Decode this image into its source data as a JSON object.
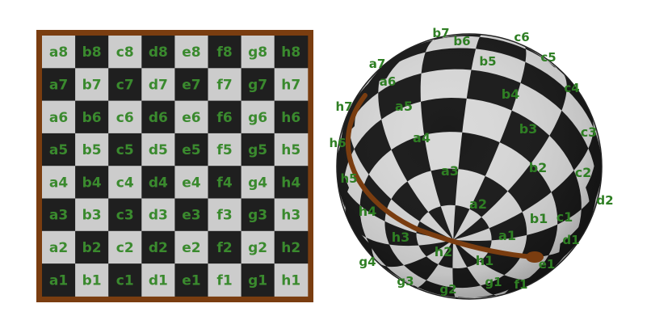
{
  "flat_board": {
    "files": [
      "a",
      "b",
      "c",
      "d",
      "e",
      "f",
      "g",
      "h"
    ],
    "ranks": [
      "8",
      "7",
      "6",
      "5",
      "4",
      "3",
      "2",
      "1"
    ],
    "colors": {
      "light": "#cccccc",
      "dark": "#1f1f1f",
      "frame": "#7a3d10",
      "label": "#3a8a2e"
    }
  },
  "sphere_board": {
    "colors": {
      "light": "#d9d9d9",
      "dark": "#1a1a1a",
      "seam": "#7a3d10",
      "label": "#2f7f24"
    },
    "labels": [
      {
        "text": "b7"
      },
      {
        "text": "b6"
      },
      {
        "text": "c6"
      },
      {
        "text": "c5"
      },
      {
        "text": "b5"
      },
      {
        "text": "a7"
      },
      {
        "text": "a6"
      },
      {
        "text": "c4"
      },
      {
        "text": "b4"
      },
      {
        "text": "h7"
      },
      {
        "text": "a5"
      },
      {
        "text": "c3"
      },
      {
        "text": "b3"
      },
      {
        "text": "h6"
      },
      {
        "text": "a4"
      },
      {
        "text": "h5"
      },
      {
        "text": "a3"
      },
      {
        "text": "b2"
      },
      {
        "text": "c2"
      },
      {
        "text": "d2"
      },
      {
        "text": "a2"
      },
      {
        "text": "h4"
      },
      {
        "text": "b1"
      },
      {
        "text": "c1"
      },
      {
        "text": "d1"
      },
      {
        "text": "h3"
      },
      {
        "text": "a1"
      },
      {
        "text": "h2"
      },
      {
        "text": "h1"
      },
      {
        "text": "e1"
      },
      {
        "text": "g4"
      },
      {
        "text": "g3"
      },
      {
        "text": "g2"
      },
      {
        "text": "g1"
      },
      {
        "text": "f1"
      }
    ]
  }
}
